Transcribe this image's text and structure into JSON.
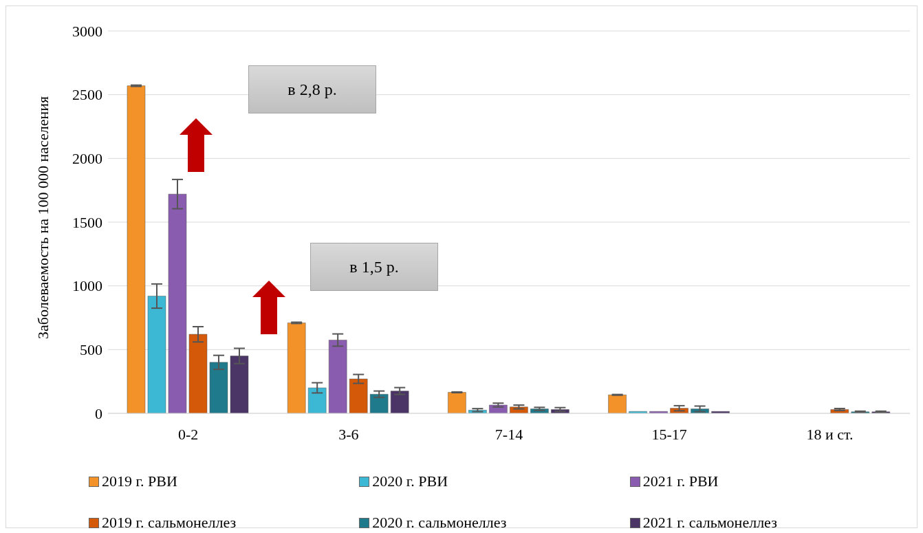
{
  "chart_data": {
    "type": "bar",
    "ylabel": "Заболеваемость на 100 000 населения",
    "categories": [
      "0-2",
      "3-6",
      "7-14",
      "15-17",
      "18 и ст."
    ],
    "series": [
      {
        "name": "2019 г. РВИ",
        "color": "#f39229",
        "values": [
          2570,
          710,
          165,
          145,
          0
        ],
        "errors": [
          5,
          5,
          3,
          3,
          null
        ]
      },
      {
        "name": "2020 г. РВИ",
        "color": "#3cb8d4",
        "values": [
          920,
          200,
          25,
          15,
          0
        ],
        "errors": [
          95,
          40,
          12,
          null,
          null
        ]
      },
      {
        "name": "2021 г. РВИ",
        "color": "#8a5cb0",
        "values": [
          1720,
          575,
          65,
          15,
          0
        ],
        "errors": [
          115,
          48,
          15,
          null,
          null
        ]
      },
      {
        "name": "2019 г. сальмонеллез",
        "color": "#d45a0a",
        "values": [
          620,
          270,
          50,
          40,
          30
        ],
        "errors": [
          60,
          35,
          15,
          20,
          8
        ]
      },
      {
        "name": "2020 г. сальмонеллез",
        "color": "#1f7a8c",
        "values": [
          400,
          150,
          35,
          35,
          12
        ],
        "errors": [
          55,
          25,
          12,
          22,
          5
        ]
      },
      {
        "name": "2021 г. сальмонеллез",
        "color": "#4b3566",
        "values": [
          450,
          175,
          30,
          15,
          12
        ],
        "errors": [
          60,
          27,
          15,
          null,
          5
        ]
      }
    ],
    "ylim": [
      0,
      3000
    ],
    "yticks": [
      0,
      500,
      1000,
      1500,
      2000,
      2500,
      3000
    ],
    "grid": "y",
    "legend": "bottom",
    "annotations": [
      "в 2,8 р.",
      "в 1,5 р."
    ]
  }
}
